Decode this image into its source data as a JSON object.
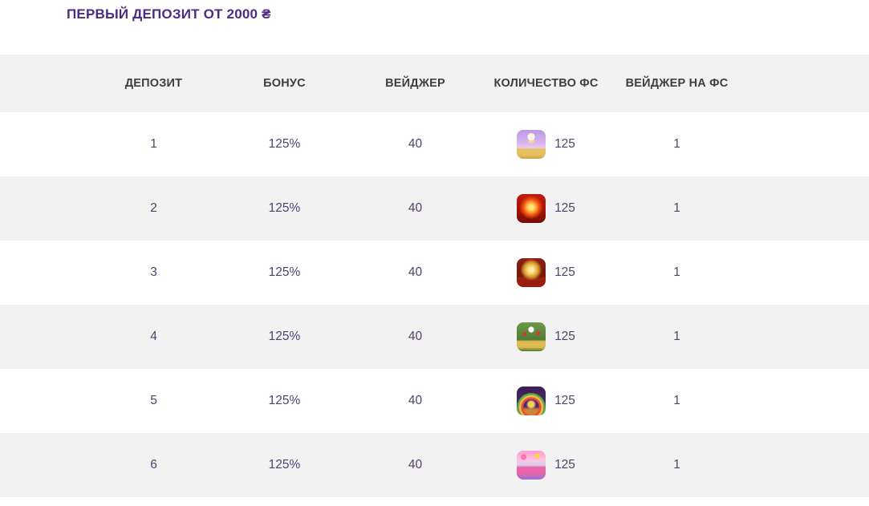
{
  "title": "ПЕРВЫЙ ДЕПОЗИТ ОТ 2000 ₴",
  "colors": {
    "title_purple": "#4d2b85",
    "cell_text_purple": "#52406e",
    "header_text": "#3e3e3e",
    "row_alt_bg": "#f2f2f2",
    "page_bg": "#ffffff"
  },
  "table": {
    "headers": [
      "ДЕПОЗИТ",
      "БОНУС",
      "ВЕЙДЖЕР",
      "КОЛИЧЕСТВО ФС",
      "ВЕЙДЖЕР НА ФС"
    ],
    "rows": [
      {
        "deposit": "1",
        "bonus": "125%",
        "wager": "40",
        "fs_count": "125",
        "fs_wager": "1",
        "game_icon": "starlight-princess-slot"
      },
      {
        "deposit": "2",
        "bonus": "125%",
        "wager": "40",
        "fs_count": "125",
        "fs_wager": "1",
        "game_icon": "fiery-sun-3-slot"
      },
      {
        "deposit": "3",
        "bonus": "125%",
        "wager": "40",
        "fs_count": "125",
        "fs_wager": "1",
        "game_icon": "golden-coin-2-slot"
      },
      {
        "deposit": "4",
        "bonus": "125%",
        "wager": "40",
        "fs_count": "125",
        "fs_wager": "1",
        "game_icon": "panda-slot"
      },
      {
        "deposit": "5",
        "bonus": "125%",
        "wager": "40",
        "fs_count": "125",
        "fs_wager": "1",
        "game_icon": "rainbow-leprechaun-slot"
      },
      {
        "deposit": "6",
        "bonus": "125%",
        "wager": "40",
        "fs_count": "125",
        "fs_wager": "1",
        "game_icon": "sweet-bonanza-slot"
      }
    ]
  }
}
